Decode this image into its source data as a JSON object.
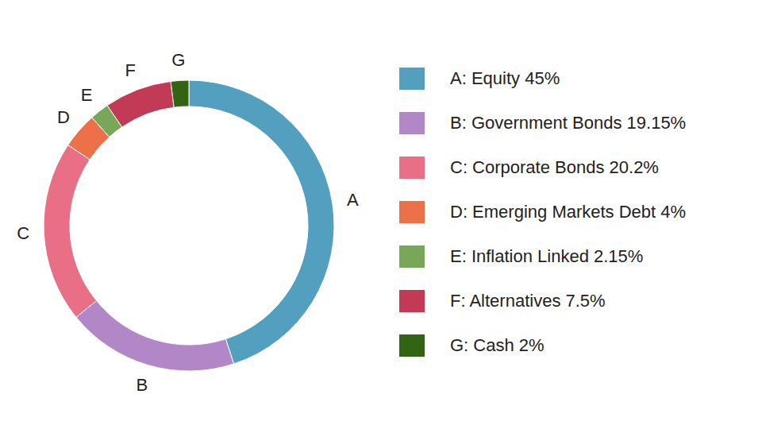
{
  "chart_data": {
    "type": "pie",
    "categories": [
      "A",
      "B",
      "C",
      "D",
      "E",
      "F",
      "G"
    ],
    "legend_labels": [
      "A: Equity 45%",
      "B: Government Bonds 19.15%",
      "C: Corporate Bonds 20.2%",
      "D: Emerging Markets Debt 4%",
      "E: Inflation Linked 2.15%",
      "F: Alternatives 7.5%",
      "G: Cash 2%"
    ],
    "values": [
      45,
      19.15,
      20.2,
      4,
      2.15,
      7.5,
      2
    ],
    "colors": [
      "#529fc0",
      "#b187c7",
      "#e86f86",
      "#ec7149",
      "#78a75a",
      "#c23a55",
      "#336414"
    ],
    "legend": "right"
  }
}
